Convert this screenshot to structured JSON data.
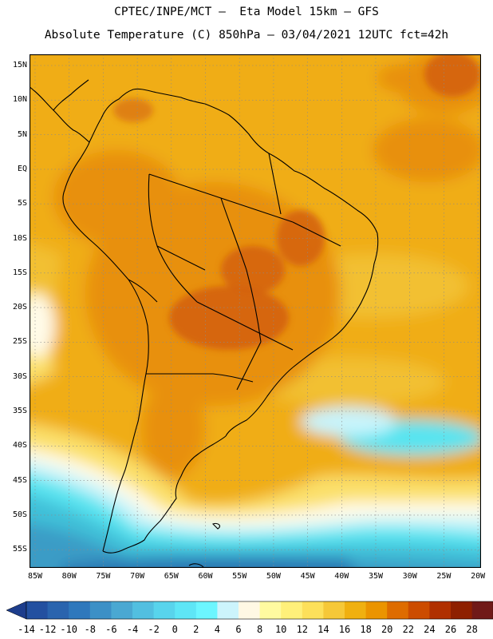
{
  "header": {
    "line1": "CPTEC/INPE/MCT –  Eta Model 15km – GFS",
    "line2": "Absolute Temperature (C) 850hPa – 03/04/2021 12UTC fct=42h"
  },
  "map": {
    "lat_labels": [
      "15N",
      "10N",
      "5N",
      "EQ",
      "5S",
      "10S",
      "15S",
      "20S",
      "25S",
      "30S",
      "35S",
      "40S",
      "45S",
      "50S",
      "55S"
    ],
    "lon_labels": [
      "85W",
      "80W",
      "75W",
      "70W",
      "65W",
      "60W",
      "55W",
      "50W",
      "45W",
      "40W",
      "35W",
      "30W",
      "25W",
      "20W"
    ],
    "colors": {
      "deep_orange": "#d4620c",
      "orange": "#e8900e",
      "gold": "#f0ad12",
      "amber": "#f2c030",
      "yellow": "#fbe06a",
      "light_yellow": "#fff4a8",
      "cream": "#fffbe8",
      "pale_cyan": "#c8f4fb",
      "cyan": "#58e4f0",
      "teal": "#40c0d8",
      "mid_blue": "#3a9cc6",
      "blue": "#2a78b4",
      "dark_blue": "#1e5aa0",
      "coast": "#000000",
      "grid": "#8a8a8a"
    }
  },
  "colorbar": {
    "labels": [
      "-14",
      "-12",
      "-10",
      "-8",
      "-6",
      "-4",
      "-2",
      "0",
      "2",
      "4",
      "6",
      "8",
      "10",
      "12",
      "14",
      "16",
      "18",
      "20",
      "22",
      "24",
      "26",
      "28"
    ],
    "colors": [
      "#1d3d8c",
      "#2350a0",
      "#2a64ae",
      "#2f78bc",
      "#3c90c6",
      "#4aa8d2",
      "#52bfe0",
      "#58d4ec",
      "#5ee6f6",
      "#6cf6ff",
      "#ccf4fc",
      "#fff8e4",
      "#fffaa0",
      "#fff07a",
      "#fde05a",
      "#f6c838",
      "#f0b010",
      "#eb9400",
      "#de6c00",
      "#cc4c00",
      "#b03000",
      "#8e2000",
      "#701a18",
      "#7a0020"
    ]
  }
}
